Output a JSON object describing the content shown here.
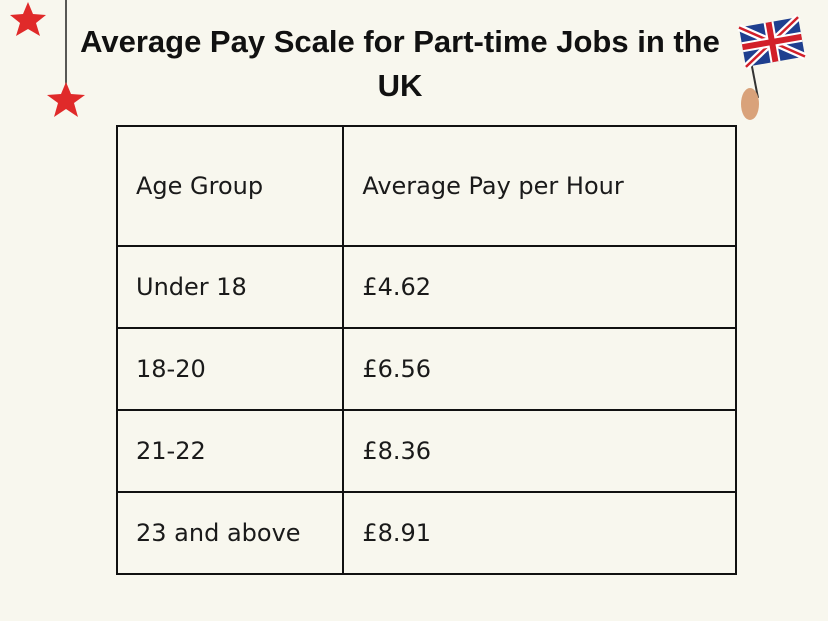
{
  "header": {
    "title": "Average Pay Scale for Part-time Jobs in the UK"
  },
  "table": {
    "headers": [
      "Age Group",
      "Average Pay per Hour"
    ],
    "rows": [
      [
        "Under 18",
        "£4.62"
      ],
      [
        "18-20",
        "£6.56"
      ],
      [
        "21-22",
        "£8.36"
      ],
      [
        "23 and above",
        "£8.91"
      ]
    ]
  }
}
